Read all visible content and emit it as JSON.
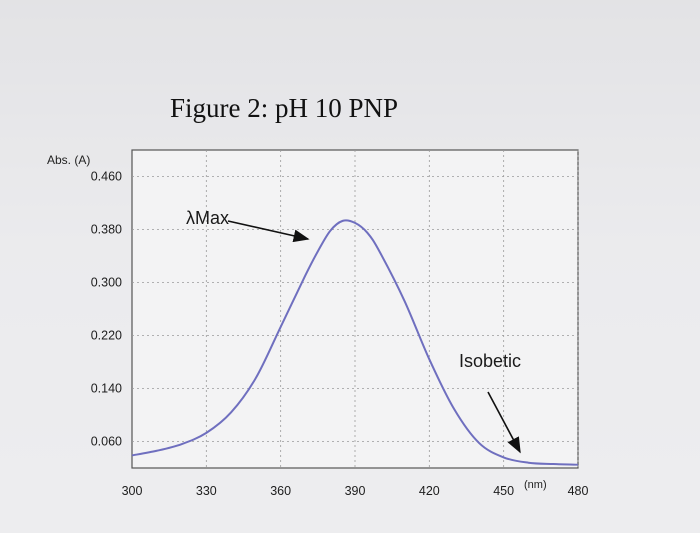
{
  "chart_data": {
    "type": "line",
    "title": "Figure 2: pH 10 PNP",
    "ylabel": "Abs. (A)",
    "xlabel": "(nm)",
    "x_ticks": [
      300,
      330,
      360,
      390,
      420,
      450,
      480
    ],
    "y_ticks": [
      "0.060",
      "0.140",
      "0.220",
      "0.300",
      "0.380",
      "0.460"
    ],
    "xlim": [
      300,
      480
    ],
    "ylim": [
      0.02,
      0.5
    ],
    "grid": true,
    "series": [
      {
        "color": "#6f6fbf",
        "x": [
          300,
          310,
          320,
          330,
          340,
          350,
          360,
          370,
          375,
          380,
          385,
          390,
          395,
          400,
          410,
          420,
          430,
          440,
          450,
          460,
          470,
          480
        ],
        "y": [
          0.039,
          0.046,
          0.056,
          0.073,
          0.104,
          0.156,
          0.233,
          0.311,
          0.347,
          0.378,
          0.393,
          0.39,
          0.375,
          0.346,
          0.272,
          0.184,
          0.109,
          0.058,
          0.036,
          0.028,
          0.026,
          0.025
        ]
      }
    ],
    "annotations": [
      {
        "text": "λMax",
        "x": 387,
        "y": 0.392
      },
      {
        "text": "Isobetic",
        "x": 478,
        "y": 0.027
      }
    ]
  }
}
